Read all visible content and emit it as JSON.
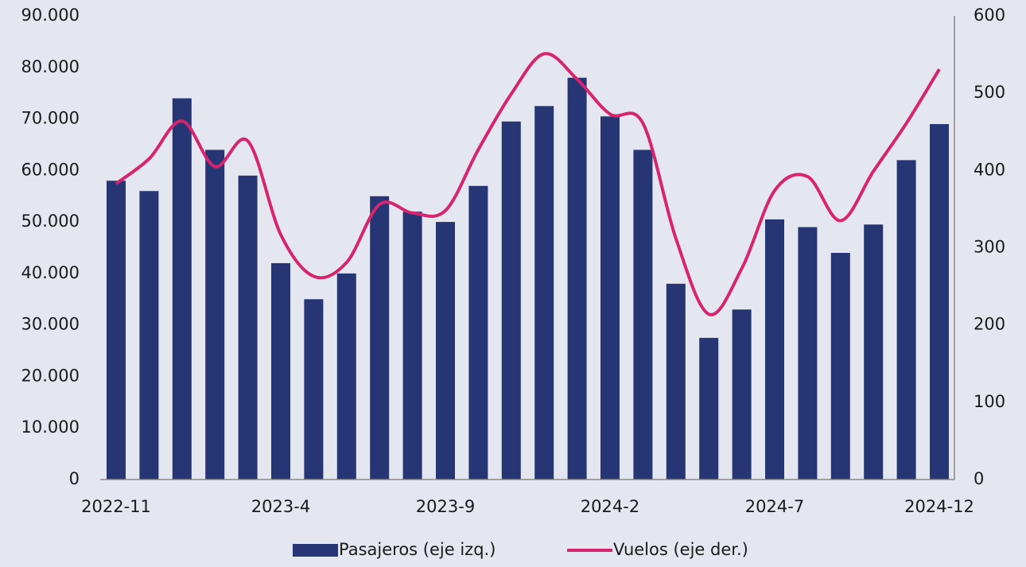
{
  "chart_data": {
    "type": "bar-line",
    "categories": [
      "2022-11",
      null,
      null,
      null,
      null,
      "2023-4",
      null,
      null,
      null,
      null,
      "2023-9",
      null,
      null,
      null,
      null,
      "2024-2",
      null,
      null,
      null,
      null,
      "2024-7",
      null,
      null,
      null,
      null,
      "2024-12"
    ],
    "series": [
      {
        "name": "Pasajeros (eje izq.)",
        "type": "bar",
        "color": "#263574",
        "axis": "y",
        "values": [
          58000,
          56000,
          74000,
          64000,
          59000,
          42000,
          35000,
          40000,
          55000,
          52000,
          50000,
          57000,
          69500,
          72500,
          78000,
          70500,
          64000,
          38000,
          27500,
          33000,
          50500,
          49000,
          44000,
          49500,
          62000,
          69000
        ]
      },
      {
        "name": "Vuelos (eje der.)",
        "type": "line",
        "color": "#d6246e",
        "axis": "y2",
        "values": [
          383,
          415,
          464,
          405,
          438,
          317,
          263,
          281,
          356,
          345,
          348,
          427,
          499,
          551,
          518,
          473,
          461,
          312,
          214,
          273,
          374,
          392,
          335,
          399,
          461,
          531
        ]
      }
    ],
    "ylim": [
      0,
      90000
    ],
    "yticks": [
      0,
      {
        "value": 10000,
        "label": "10.000"
      },
      {
        "value": 20000,
        "label": "20.000"
      },
      {
        "value": 30000,
        "label": "30.000"
      },
      {
        "value": 40000,
        "label": "40.000"
      },
      {
        "value": 50000,
        "label": "50.000"
      },
      {
        "value": 60000,
        "label": "60.000"
      },
      {
        "value": 70000,
        "label": "70.000"
      },
      {
        "value": 80000,
        "label": "80.000"
      },
      {
        "value": 90000,
        "label": "90.000"
      }
    ],
    "y2lim": [
      0,
      600
    ],
    "y2ticks": [
      0,
      100,
      200,
      300,
      400,
      500,
      600
    ],
    "legend": "bottom"
  }
}
